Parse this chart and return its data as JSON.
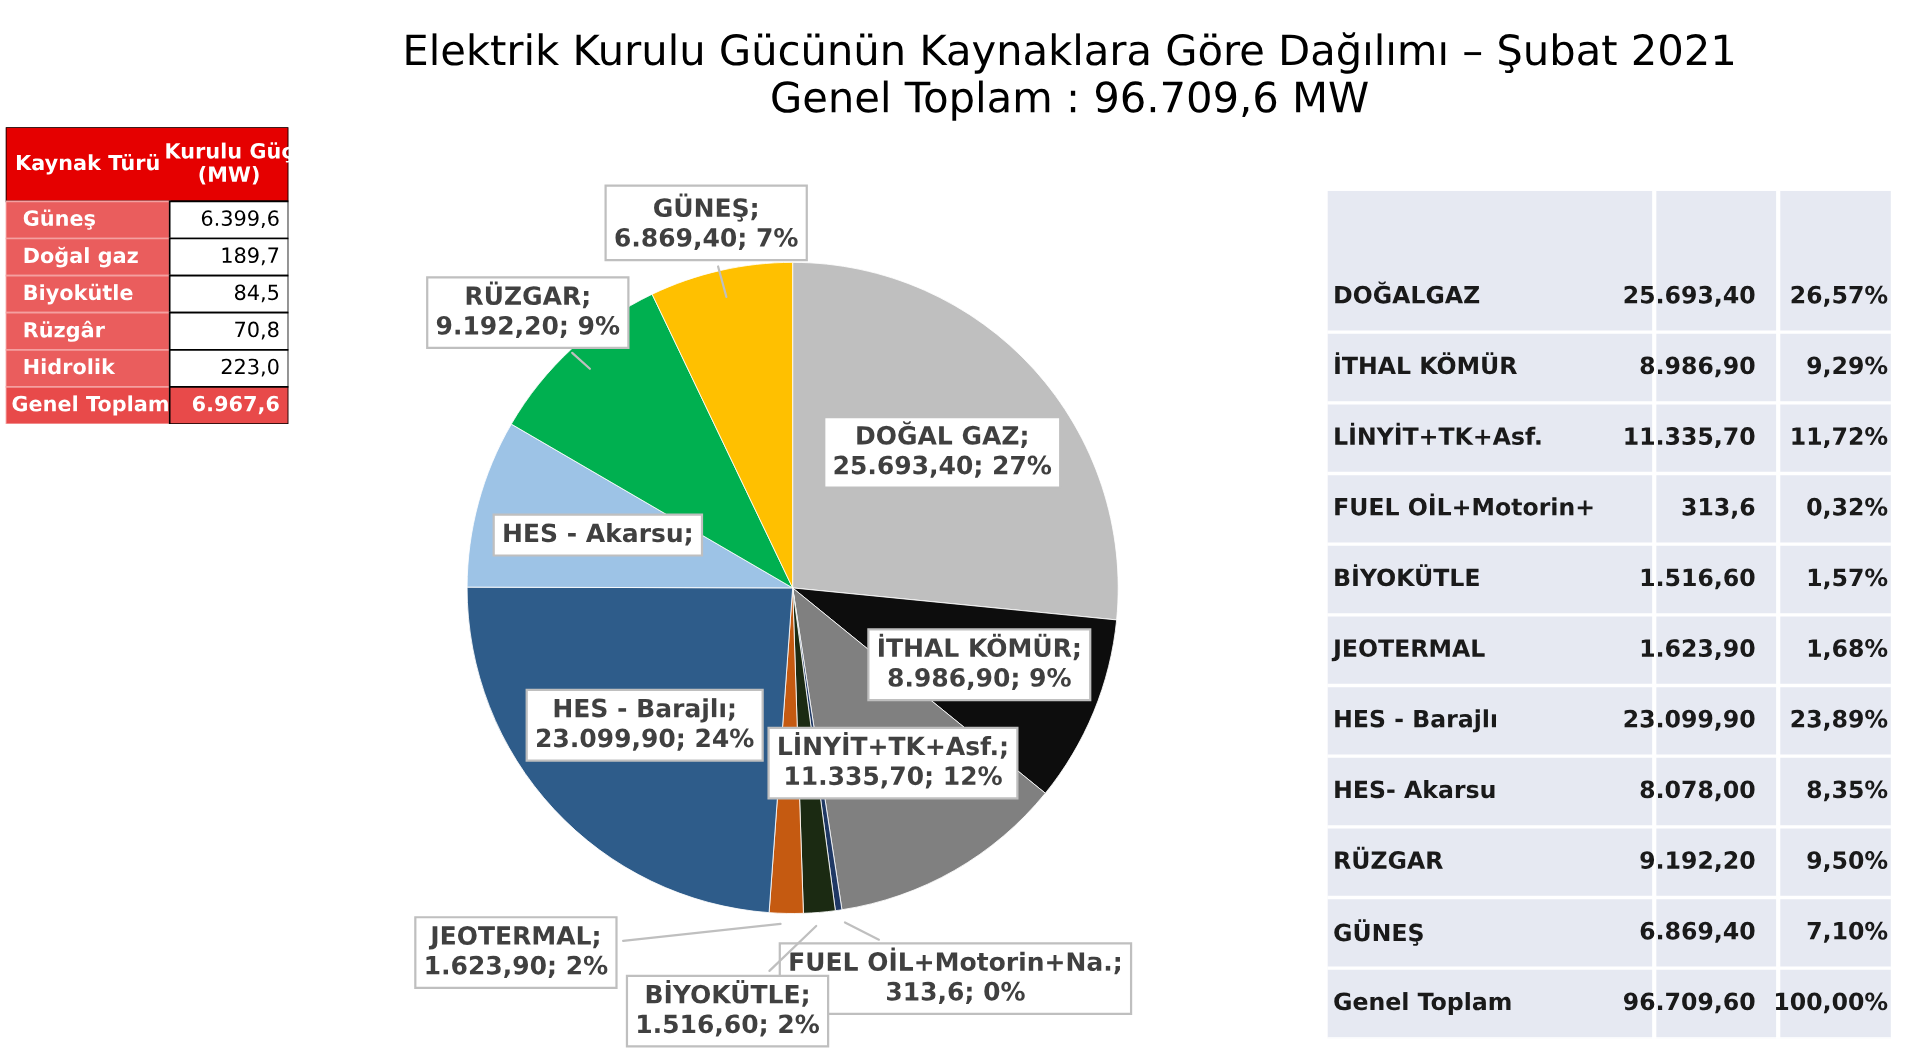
{
  "chart_data": [
    {
      "type": "other",
      "xlabel": "Kaynak Türü",
      "ylabel": "Kurulu Güç (MW)",
      "categories": [
        "Güneş",
        "Doğal gaz",
        "Biyokütle",
        "Rüzgâr",
        "Hidrolik",
        "Genel Toplam"
      ],
      "values": [
        6399.6,
        189.7,
        84.5,
        70.8,
        223.0,
        6967.6
      ],
      "value_labels": [
        "6.399,6",
        "189,7",
        "84,5",
        "70,8",
        "223,0",
        "6.967,6"
      ]
    },
    {
      "type": "pie",
      "title": "Elektrik Kurulu Gücünün Kaynaklara Göre Dağılımı – Şubat 2021",
      "subtitle": "Genel Toplam : 96.709,6 MW",
      "categories": [
        "DOĞAL GAZ",
        "İTHAL KÖMÜR",
        "LİNYİT+TK+Asf.",
        "FUEL OİL+Motorin+Na.",
        "BİYOKÜTLE",
        "JEOTERMAL",
        "HES - Barajlı",
        "HES - Akarsu",
        "RÜZGAR",
        "GÜNEŞ"
      ],
      "values": [
        25693.4,
        8986.9,
        11335.7,
        313.6,
        1516.6,
        1623.9,
        23099.9,
        8078.0,
        9192.2,
        6869.4
      ],
      "colors": [
        "#bfbfbf",
        "#0d0d0d",
        "#808080",
        "#1f3864",
        "#1b2a12",
        "#c55a11",
        "#2e5c8a",
        "#9dc3e6",
        "#00b050",
        "#ffc000"
      ],
      "value_labels": [
        "; 25.693,40; 27%",
        "; 8.986,90; 9%",
        "; 11.335,70; 12%",
        "; 313,6; 0%",
        "; 1.516,60; 2%",
        "; 1.623,90; 2%",
        "; 23.099,90; 24%",
        ";",
        "; 9.192,20; 9%",
        "; 6.869,40; 7%"
      ]
    },
    {
      "type": "other",
      "categories": [
        "DOĞALGAZ",
        "İTHAL KÖMÜR",
        "LİNYİT+TK+Asf.",
        "FUEL OİL+Motorin+",
        "BİYOKÜTLE",
        "JEOTERMAL",
        "HES - Barajlı",
        "HES- Akarsu",
        "RÜZGAR",
        "GÜNEŞ",
        "Genel Toplam"
      ],
      "series": [
        {
          "values": [
            25693.4,
            8986.9,
            11335.7,
            313.6,
            1516.6,
            1623.9,
            23099.9,
            8078.0,
            9192.2,
            6869.4,
            96709.6
          ],
          "value_labels": [
            "25.693,40",
            "8.986,90",
            "11.335,70",
            "313,6",
            "1.516,60",
            "1.623,90",
            "23.099,90",
            "8.078,00",
            "9.192,20",
            "6.869,40",
            "96.709,60"
          ]
        },
        {
          "values": [
            26.57,
            9.29,
            11.72,
            0.32,
            1.57,
            1.68,
            23.89,
            8.35,
            9.5,
            7.1,
            100.0
          ],
          "value_labels": [
            "26,57%",
            "9,29%",
            "11,72%",
            "0,32%",
            "1,57%",
            "1,68%",
            "23,89%",
            "8,35%",
            "9,50%",
            "7,10%",
            "100,00%"
          ]
        }
      ]
    }
  ]
}
